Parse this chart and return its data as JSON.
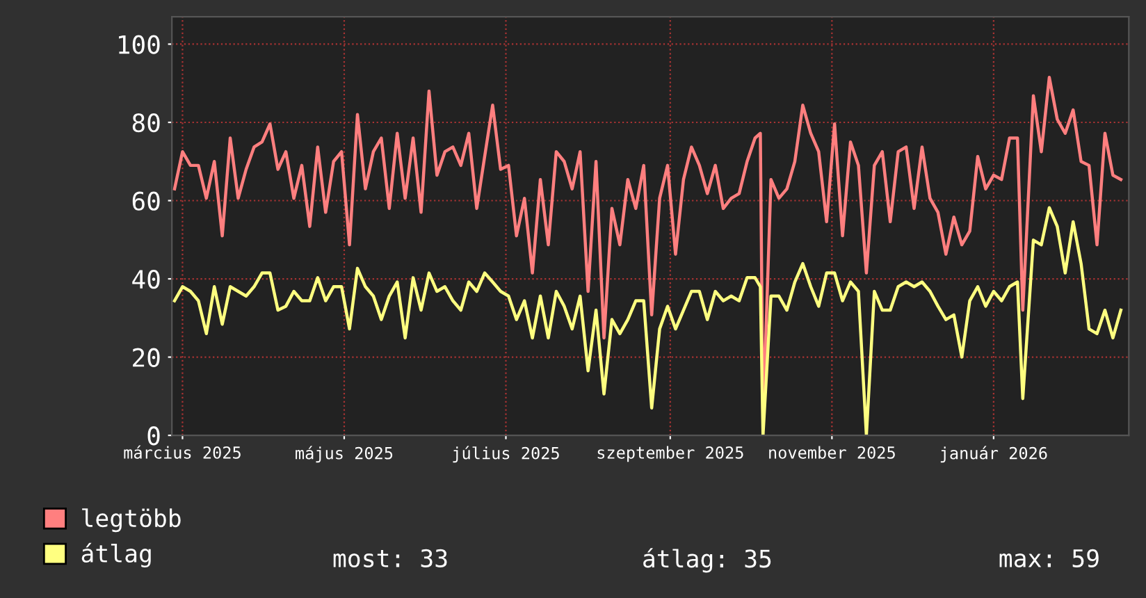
{
  "chart_data": {
    "type": "line",
    "x": [
      "2025-02-26",
      "2025-03-01",
      "2025-03-04",
      "2025-03-07",
      "2025-03-10",
      "2025-03-13",
      "2025-03-16",
      "2025-03-19",
      "2025-03-22",
      "2025-03-25",
      "2025-03-28",
      "2025-03-31",
      "2025-04-03",
      "2025-04-06",
      "2025-04-09",
      "2025-04-12",
      "2025-04-15",
      "2025-04-18",
      "2025-04-21",
      "2025-04-24",
      "2025-04-27",
      "2025-04-30",
      "2025-05-03",
      "2025-05-06",
      "2025-05-09",
      "2025-05-12",
      "2025-05-15",
      "2025-05-18",
      "2025-05-21",
      "2025-05-24",
      "2025-05-27",
      "2025-05-30",
      "2025-06-02",
      "2025-06-05",
      "2025-06-08",
      "2025-06-11",
      "2025-06-14",
      "2025-06-17",
      "2025-06-20",
      "2025-06-23",
      "2025-06-26",
      "2025-06-29",
      "2025-07-02",
      "2025-07-05",
      "2025-07-08",
      "2025-07-11",
      "2025-07-14",
      "2025-07-17",
      "2025-07-20",
      "2025-07-23",
      "2025-07-26",
      "2025-07-29",
      "2025-08-01",
      "2025-08-04",
      "2025-08-07",
      "2025-08-10",
      "2025-08-13",
      "2025-08-16",
      "2025-08-19",
      "2025-08-22",
      "2025-08-25",
      "2025-08-28",
      "2025-08-31",
      "2025-09-03",
      "2025-09-06",
      "2025-09-09",
      "2025-09-12",
      "2025-09-15",
      "2025-09-18",
      "2025-09-21",
      "2025-09-24",
      "2025-09-27",
      "2025-09-30",
      "2025-10-03",
      "2025-10-05",
      "2025-10-06",
      "2025-10-09",
      "2025-10-12",
      "2025-10-15",
      "2025-10-18",
      "2025-10-21",
      "2025-10-24",
      "2025-10-27",
      "2025-10-30",
      "2025-11-02",
      "2025-11-05",
      "2025-11-08",
      "2025-11-11",
      "2025-11-14",
      "2025-11-17",
      "2025-11-20",
      "2025-11-23",
      "2025-11-26",
      "2025-11-29",
      "2025-12-02",
      "2025-12-05",
      "2025-12-08",
      "2025-12-11",
      "2025-12-14",
      "2025-12-17",
      "2025-12-20",
      "2025-12-23",
      "2025-12-26",
      "2025-12-29",
      "2026-01-01",
      "2026-01-04",
      "2026-01-07",
      "2026-01-10",
      "2026-01-12",
      "2026-01-16",
      "2026-01-19",
      "2026-01-22",
      "2026-01-25",
      "2026-01-28",
      "2026-01-31",
      "2026-02-03",
      "2026-02-06",
      "2026-02-09",
      "2026-02-12",
      "2026-02-15",
      "2026-02-18"
    ],
    "series": [
      {
        "name": "legtöbb",
        "color": "#ff7f7f",
        "values": [
          63,
          72.5,
          69,
          69,
          60.6,
          70,
          51,
          76,
          60.6,
          68,
          73.7,
          75,
          79.6,
          68,
          72.5,
          60.6,
          69,
          53.4,
          73.7,
          57,
          70,
          72.5,
          48.7,
          82,
          63,
          72.5,
          76,
          58,
          77.2,
          60.6,
          76,
          57,
          88,
          66.5,
          72.5,
          73.7,
          69,
          77.2,
          58,
          71.3,
          84.4,
          68,
          69,
          51,
          60.6,
          41.5,
          65.4,
          48.7,
          72.5,
          70,
          63,
          72.5,
          36.8,
          70,
          24.9,
          58,
          48.7,
          65.4,
          58,
          69,
          30.8,
          60.6,
          69,
          46.3,
          65.4,
          73.7,
          69,
          61.8,
          69,
          58,
          60.6,
          61.8,
          70,
          76,
          77.2,
          3.4,
          65.4,
          60.6,
          63,
          70,
          84.4,
          77.2,
          72.5,
          54.6,
          79.6,
          51,
          75,
          69,
          41.5,
          69,
          72.5,
          54.6,
          72.5,
          73.7,
          58,
          73.7,
          60.6,
          57,
          46.3,
          55.8,
          48.7,
          52.2,
          71.3,
          63,
          66.5,
          65.4,
          76,
          76,
          32,
          86.8,
          72.5,
          91.5,
          80.8,
          77.2,
          83.2,
          70,
          69,
          48.7,
          77.2,
          66.5,
          65.4
        ]
      },
      {
        "name": "átlag",
        "color": "#ffff80",
        "values": [
          34.4,
          38,
          36.8,
          34.4,
          26,
          38,
          28.4,
          38,
          36.8,
          35.6,
          38,
          41.5,
          41.5,
          32,
          33,
          36.8,
          34.4,
          34.4,
          40.3,
          34.4,
          38,
          38,
          27.2,
          42.7,
          38,
          35.6,
          29.6,
          35.6,
          39.2,
          24.9,
          40.3,
          32,
          41.5,
          36.8,
          38,
          34.4,
          32,
          39.2,
          36.8,
          41.5,
          39.2,
          36.8,
          35.6,
          29.6,
          34.4,
          24.9,
          35.6,
          24.9,
          36.8,
          33,
          27.2,
          35.6,
          16.5,
          32,
          10.6,
          29.6,
          26,
          29.6,
          34.4,
          34.4,
          7,
          27.2,
          33,
          27.2,
          32,
          36.8,
          36.8,
          29.6,
          36.8,
          34.4,
          35.6,
          34.4,
          40.3,
          40.3,
          38,
          0,
          35.6,
          35.6,
          32,
          39.2,
          43.9,
          38,
          33,
          41.5,
          41.5,
          34.4,
          39.2,
          36.8,
          0,
          36.8,
          32,
          32,
          38,
          39.2,
          38,
          39.2,
          36.8,
          33,
          29.6,
          30.8,
          20,
          34.4,
          38,
          33,
          36.8,
          34.4,
          38,
          39.2,
          9.4,
          49.9,
          48.7,
          58.2,
          53.4,
          41.5,
          54.6,
          43.9,
          27.2,
          26,
          32,
          24.9,
          32
        ]
      }
    ],
    "xlim": [
      "2025-02-25",
      "2026-02-21"
    ],
    "xticks": [
      {
        "value": "2025-03-01",
        "label": "március 2025"
      },
      {
        "value": "2025-05-01",
        "label": "május 2025"
      },
      {
        "value": "2025-07-01",
        "label": "július 2025"
      },
      {
        "value": "2025-09-01",
        "label": "szeptember 2025"
      },
      {
        "value": "2025-11-01",
        "label": "november 2025"
      },
      {
        "value": "2026-01-01",
        "label": "január 2026"
      }
    ],
    "ylim": [
      0,
      107
    ],
    "yticks": [
      0,
      20,
      40,
      60,
      80,
      100
    ],
    "grid": true,
    "legend": "bottom left",
    "annotations": [
      "most: 33",
      "átlag: 35",
      "max: 59"
    ]
  }
}
